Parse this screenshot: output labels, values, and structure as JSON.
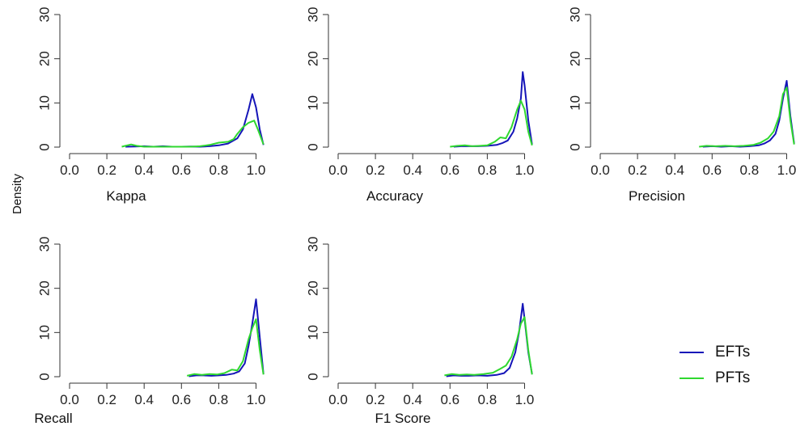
{
  "ylabel": "Density",
  "legend": [
    {
      "label": "EFTs",
      "color": "#1515b8"
    },
    {
      "label": "PFTs",
      "color": "#2fd82f"
    }
  ],
  "chart_data": [
    {
      "type": "line",
      "xlabel": "Kappa",
      "xlim": [
        0.0,
        1.05
      ],
      "ylim": [
        0,
        30
      ],
      "xticks": [
        "0.0",
        "0.2",
        "0.4",
        "0.6",
        "0.8",
        "1.0"
      ],
      "yticks": [
        "0",
        "10",
        "20",
        "30"
      ],
      "series": [
        {
          "name": "EFTs",
          "x": [
            0.3,
            0.35,
            0.4,
            0.45,
            0.5,
            0.55,
            0.6,
            0.65,
            0.7,
            0.75,
            0.8,
            0.85,
            0.9,
            0.93,
            0.96,
            0.98,
            1.0,
            1.02,
            1.04
          ],
          "y": [
            0.1,
            0.15,
            0.2,
            0.1,
            0.2,
            0.1,
            0.1,
            0.15,
            0.1,
            0.2,
            0.4,
            0.8,
            2.0,
            4.0,
            8.5,
            12.0,
            9.0,
            4.0,
            0.5
          ]
        },
        {
          "name": "PFTs",
          "x": [
            0.28,
            0.3,
            0.33,
            0.36,
            0.4,
            0.45,
            0.5,
            0.6,
            0.65,
            0.7,
            0.75,
            0.8,
            0.85,
            0.88,
            0.9,
            0.93,
            0.96,
            0.99,
            1.01,
            1.04
          ],
          "y": [
            0.1,
            0.3,
            0.6,
            0.3,
            0.1,
            0.1,
            0.1,
            0.1,
            0.1,
            0.2,
            0.5,
            1.0,
            1.2,
            1.8,
            3.0,
            4.5,
            5.5,
            6.0,
            4.0,
            0.6
          ]
        }
      ]
    },
    {
      "type": "line",
      "xlabel": "Accuracy",
      "xlim": [
        0.0,
        1.05
      ],
      "ylim": [
        0,
        30
      ],
      "xticks": [
        "0.0",
        "0.2",
        "0.4",
        "0.6",
        "0.8",
        "1.0"
      ],
      "yticks": [
        "0",
        "10",
        "20",
        "30"
      ],
      "series": [
        {
          "name": "EFTs",
          "x": [
            0.62,
            0.66,
            0.7,
            0.75,
            0.8,
            0.85,
            0.88,
            0.91,
            0.94,
            0.96,
            0.98,
            0.99,
            1.0,
            1.02,
            1.04
          ],
          "y": [
            0.1,
            0.2,
            0.2,
            0.2,
            0.3,
            0.5,
            0.9,
            1.5,
            3.5,
            6.5,
            11.0,
            17.0,
            14.0,
            6.0,
            0.6
          ]
        },
        {
          "name": "PFTs",
          "x": [
            0.6,
            0.64,
            0.68,
            0.72,
            0.76,
            0.8,
            0.84,
            0.87,
            0.9,
            0.93,
            0.96,
            0.98,
            1.0,
            1.02,
            1.04
          ],
          "y": [
            0.1,
            0.3,
            0.4,
            0.2,
            0.3,
            0.4,
            1.2,
            2.2,
            2.0,
            4.5,
            8.5,
            10.5,
            8.5,
            3.5,
            0.4
          ]
        }
      ]
    },
    {
      "type": "line",
      "xlabel": "Precision",
      "xlim": [
        0.0,
        1.05
      ],
      "ylim": [
        0,
        30
      ],
      "xticks": [
        "0.0",
        "0.2",
        "0.4",
        "0.6",
        "0.8",
        "1.0"
      ],
      "yticks": [
        "0",
        "10",
        "20",
        "30"
      ],
      "series": [
        {
          "name": "EFTs",
          "x": [
            0.55,
            0.6,
            0.65,
            0.7,
            0.75,
            0.8,
            0.85,
            0.88,
            0.91,
            0.94,
            0.96,
            0.98,
            1.0,
            1.02,
            1.04
          ],
          "y": [
            0.1,
            0.2,
            0.1,
            0.2,
            0.1,
            0.2,
            0.4,
            0.8,
            1.5,
            3.0,
            6.0,
            11.0,
            15.0,
            7.0,
            0.8
          ]
        },
        {
          "name": "PFTs",
          "x": [
            0.53,
            0.57,
            0.62,
            0.67,
            0.72,
            0.77,
            0.82,
            0.86,
            0.9,
            0.93,
            0.96,
            0.98,
            1.0,
            1.02,
            1.04
          ],
          "y": [
            0.1,
            0.3,
            0.2,
            0.3,
            0.2,
            0.3,
            0.5,
            1.0,
            2.0,
            3.5,
            7.0,
            12.0,
            13.5,
            6.0,
            0.6
          ]
        }
      ]
    },
    {
      "type": "line",
      "xlabel": "Recall",
      "xlim": [
        0.0,
        1.05
      ],
      "ylim": [
        0,
        30
      ],
      "xticks": [
        "0.0",
        "0.2",
        "0.4",
        "0.6",
        "0.8",
        "1.0"
      ],
      "yticks": [
        "0",
        "10",
        "20",
        "30"
      ],
      "series": [
        {
          "name": "EFTs",
          "x": [
            0.64,
            0.68,
            0.72,
            0.76,
            0.8,
            0.84,
            0.88,
            0.91,
            0.94,
            0.96,
            0.98,
            1.0,
            1.02,
            1.04
          ],
          "y": [
            0.1,
            0.3,
            0.3,
            0.2,
            0.3,
            0.4,
            0.7,
            1.2,
            3.0,
            7.0,
            12.0,
            17.5,
            9.0,
            0.6
          ]
        },
        {
          "name": "PFTs",
          "x": [
            0.63,
            0.67,
            0.71,
            0.75,
            0.79,
            0.83,
            0.87,
            0.9,
            0.93,
            0.96,
            0.98,
            1.0,
            1.02,
            1.04
          ],
          "y": [
            0.2,
            0.6,
            0.4,
            0.6,
            0.5,
            0.8,
            1.6,
            1.4,
            3.5,
            8.5,
            11.0,
            13.0,
            6.0,
            0.5
          ]
        }
      ]
    },
    {
      "type": "line",
      "xlabel": "F1 Score",
      "xlim": [
        0.0,
        1.05
      ],
      "ylim": [
        0,
        30
      ],
      "xticks": [
        "0.0",
        "0.2",
        "0.4",
        "0.6",
        "0.8",
        "1.0"
      ],
      "yticks": [
        "0",
        "10",
        "20",
        "30"
      ],
      "series": [
        {
          "name": "EFTs",
          "x": [
            0.58,
            0.62,
            0.66,
            0.7,
            0.75,
            0.8,
            0.85,
            0.89,
            0.92,
            0.95,
            0.97,
            0.99,
            1.0,
            1.02,
            1.04
          ],
          "y": [
            0.1,
            0.3,
            0.2,
            0.2,
            0.3,
            0.2,
            0.4,
            0.8,
            2.0,
            5.5,
            10.0,
            16.5,
            13.0,
            5.5,
            0.6
          ]
        },
        {
          "name": "PFTs",
          "x": [
            0.57,
            0.61,
            0.65,
            0.69,
            0.73,
            0.78,
            0.83,
            0.87,
            0.9,
            0.93,
            0.96,
            0.98,
            1.0,
            1.02,
            1.04
          ],
          "y": [
            0.3,
            0.6,
            0.4,
            0.5,
            0.4,
            0.6,
            0.9,
            1.8,
            2.5,
            4.5,
            8.5,
            12.0,
            13.5,
            6.0,
            0.5
          ]
        }
      ]
    }
  ]
}
